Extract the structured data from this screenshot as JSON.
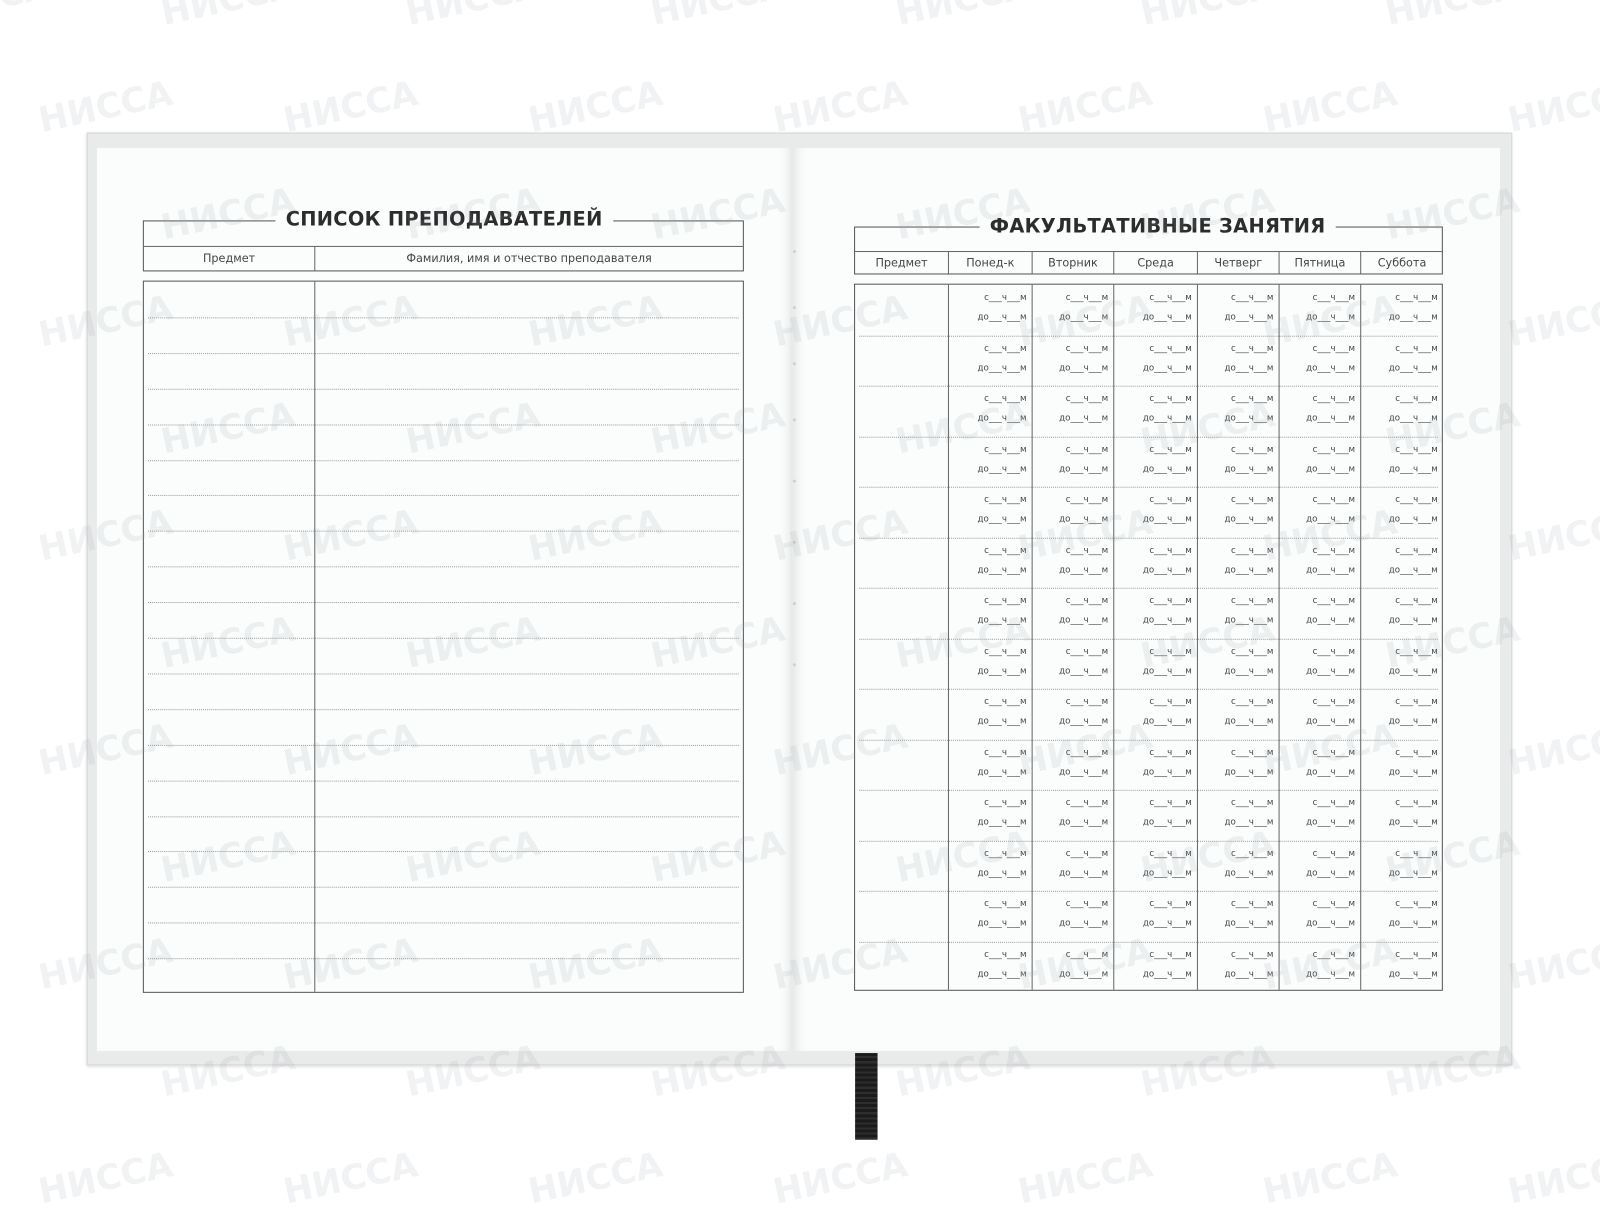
{
  "watermark": "НИССА",
  "left_page": {
    "title": "СПИСОК ПРЕПОДАВАТЕЛЕЙ",
    "columns": [
      "Предмет",
      "Фамилия, имя и отчество преподавателя"
    ],
    "row_count": 20
  },
  "right_page": {
    "title": "ФАКУЛЬТАТИВНЫЕ ЗАНЯТИЯ",
    "columns": [
      "Предмет",
      "Понед-к",
      "Вторник",
      "Среда",
      "Четверг",
      "Пятница",
      "Суббота"
    ],
    "slot_from": "с___ч___м",
    "slot_to": "до___ч___м",
    "row_count": 14
  },
  "colors": {
    "cover": "#e9ebea",
    "page": "#fbfcfc",
    "lines": "#555555",
    "ribbon": "#1b1b1b"
  }
}
